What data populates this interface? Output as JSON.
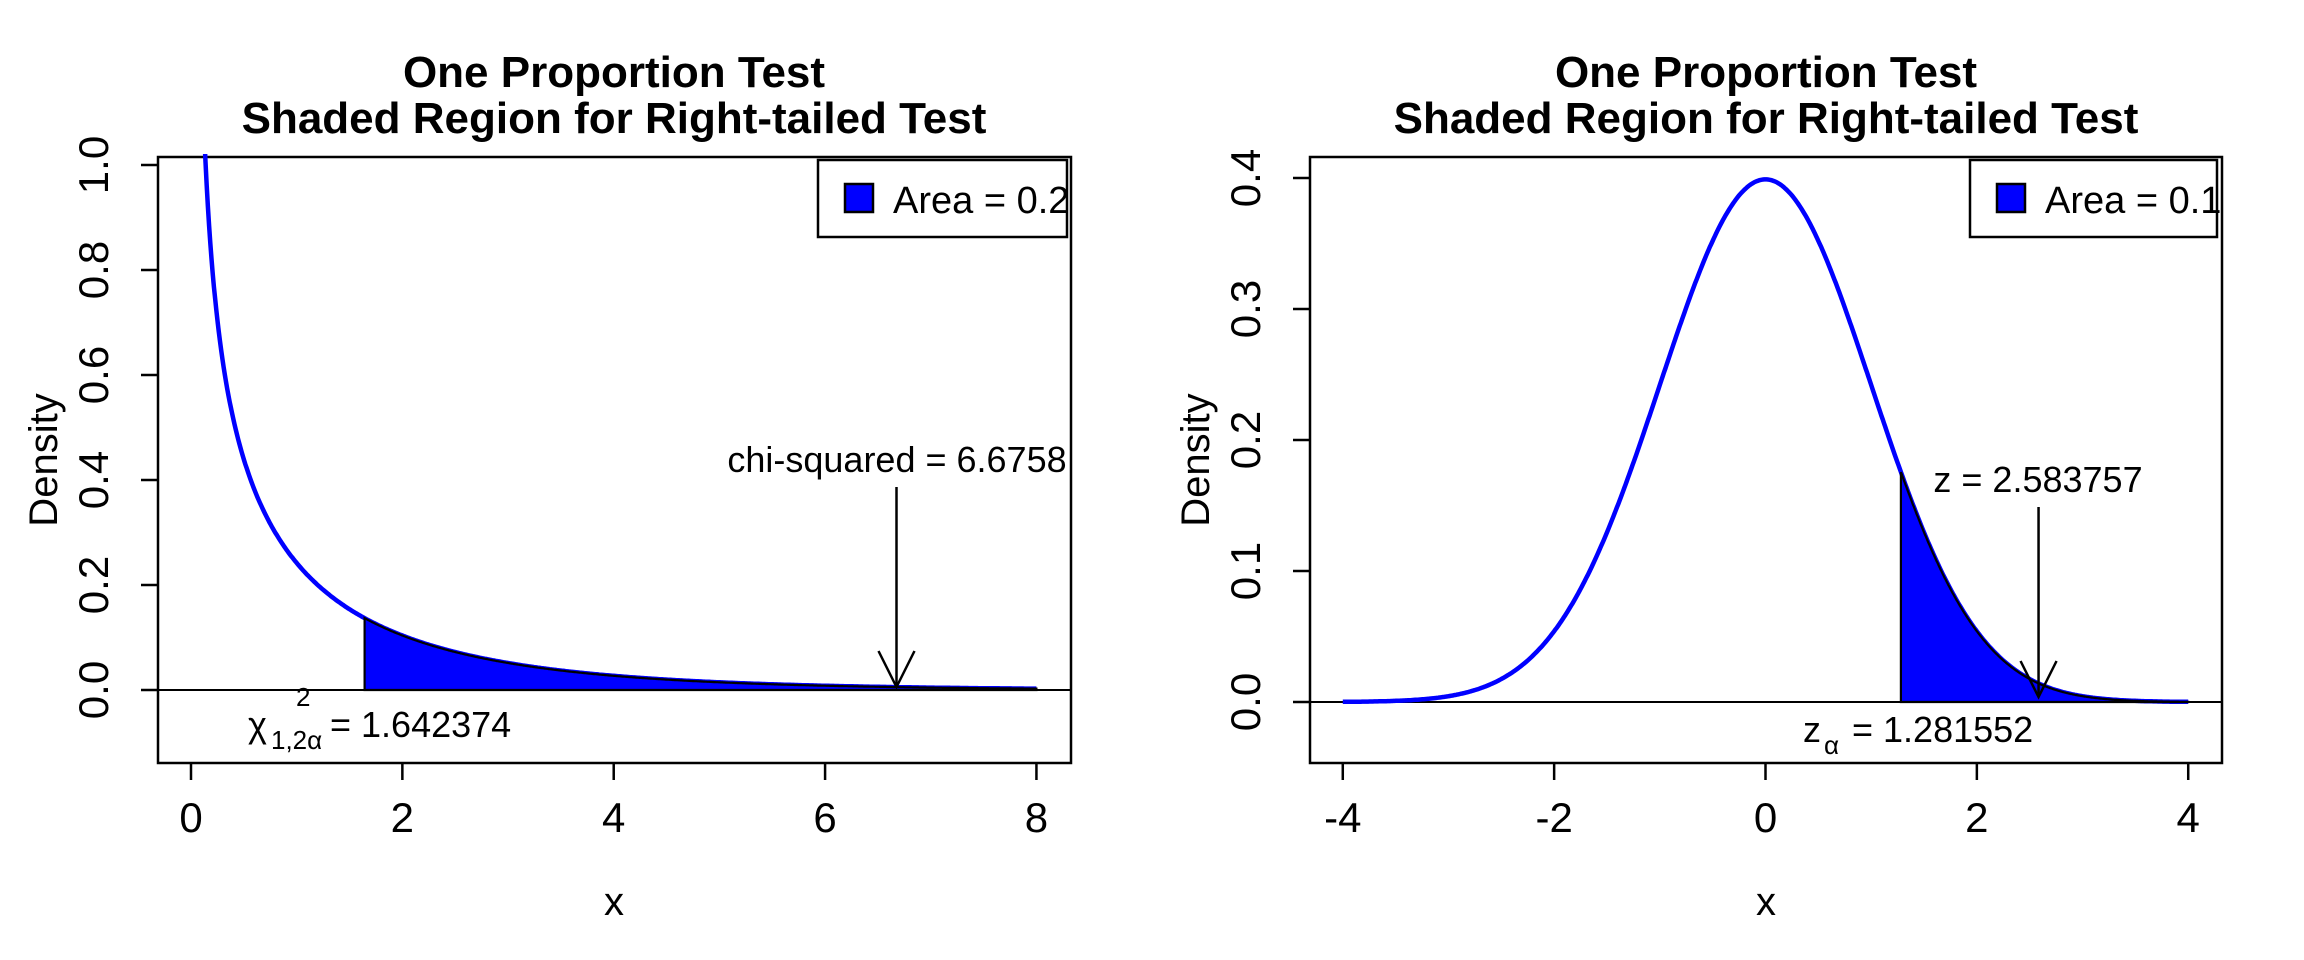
{
  "figure": {
    "background": "#FFFFFF",
    "curve_color": "#0000FF",
    "shade_color": "#0000FF",
    "axis_color": "#000000"
  },
  "panels": [
    {
      "title_line1": "One Proportion Test",
      "title_line2": "Shaded Region for Right-tailed Test",
      "xlabel": "x",
      "ylabel": "Density",
      "x_tick_labels": [
        "0",
        "2",
        "4",
        "6",
        "8"
      ],
      "y_tick_labels": [
        "0.0",
        "0.2",
        "0.4",
        "0.6",
        "0.8",
        "1.0"
      ],
      "legend_label": "Area = 0.2",
      "stat_label": "chi-squared = 6.6758",
      "crit": {
        "base": "χ",
        "sub": "1,2α",
        "sup": "2",
        "rest": "= 1.642374"
      }
    },
    {
      "title_line1": "One Proportion Test",
      "title_line2": "Shaded Region for Right-tailed Test",
      "xlabel": "x",
      "ylabel": "Density",
      "x_tick_labels": [
        "-4",
        "-2",
        "0",
        "2",
        "4"
      ],
      "y_tick_labels": [
        "0.0",
        "0.1",
        "0.2",
        "0.3",
        "0.4"
      ],
      "legend_label": "Area = 0.1",
      "stat_label": "z = 2.583757",
      "crit": {
        "base": "z",
        "sub": "α",
        "sup": "",
        "rest": "= 1.281552"
      }
    }
  ],
  "chart_data": [
    {
      "type": "area",
      "title": "One Proportion Test / Shaded Region for Right-tailed Test",
      "xlabel": "x",
      "ylabel": "Density",
      "distribution": "chi-squared",
      "df": 1,
      "curve_x_range": [
        0,
        8
      ],
      "xlim": [
        -0.32,
        8.32
      ],
      "ylim": [
        -0.144,
        1.044
      ],
      "x_ticks": [
        0,
        2,
        4,
        6,
        8
      ],
      "y_ticks": [
        0.0,
        0.2,
        0.4,
        0.6,
        0.8,
        1.0
      ],
      "grid": false,
      "legend_position": "topright",
      "legend_label": "Area = 0.2",
      "shaded_region": {
        "from": 1.642374,
        "to": 8,
        "area": 0.2,
        "fill": "#0000FF",
        "border": "#000000"
      },
      "critical_value": 1.642374,
      "critical_value_label": "chi(1,2alpha)^2 = 1.642374",
      "test_statistic": 6.6758,
      "test_statistic_label": "chi-squared = 6.6758",
      "curve_color": "#0000FF"
    },
    {
      "type": "area",
      "title": "One Proportion Test / Shaded Region for Right-tailed Test",
      "xlabel": "x",
      "ylabel": "Density",
      "distribution": "standard-normal",
      "mean": 0,
      "sd": 1,
      "curve_x_range": [
        -4,
        4
      ],
      "xlim": [
        -4.32,
        4.32
      ],
      "ylim": [
        -0.047,
        0.427
      ],
      "x_ticks": [
        -4,
        -2,
        0,
        2,
        4
      ],
      "y_ticks": [
        0.0,
        0.1,
        0.2,
        0.3,
        0.4
      ],
      "grid": false,
      "legend_position": "topright",
      "legend_label": "Area = 0.1",
      "shaded_region": {
        "from": 1.281552,
        "to": 4,
        "area": 0.1,
        "fill": "#0000FF",
        "border": "#000000"
      },
      "critical_value": 1.281552,
      "critical_value_label": "z_alpha = 1.281552",
      "test_statistic": 2.583757,
      "test_statistic_label": "z = 2.583757",
      "curve_color": "#0000FF"
    }
  ]
}
